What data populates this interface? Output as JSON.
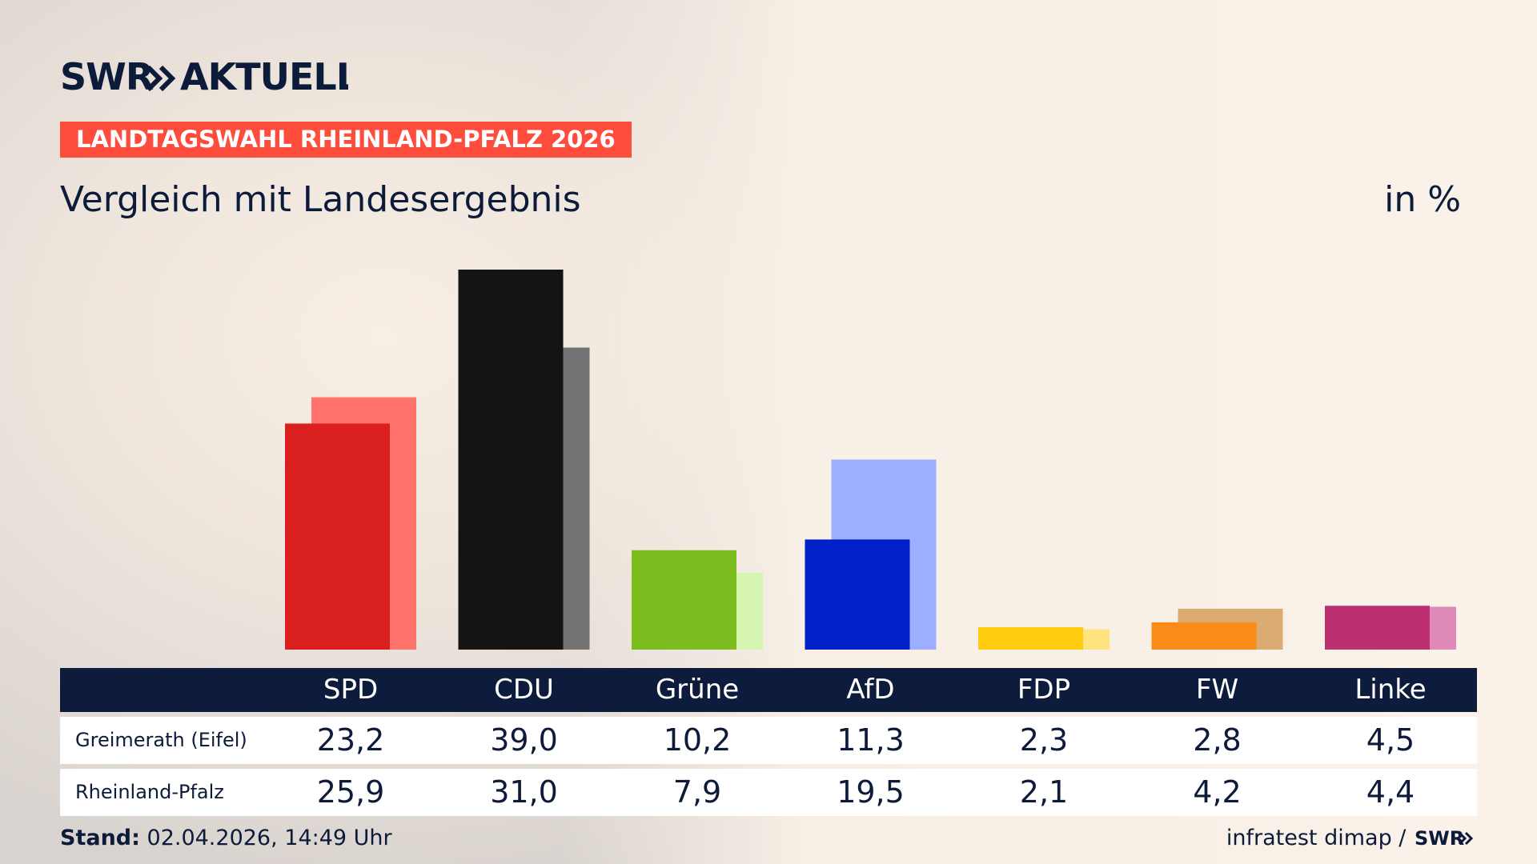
{
  "brand": {
    "logo_text": "SWR» AKTUELL",
    "footer_logo": "SWR»"
  },
  "tag": "LANDTAGSWAHL RHEINLAND-PFALZ 2026",
  "subtitle": "Vergleich mit Landesergebnis",
  "unit": "in %",
  "footer": {
    "stand_label": "Stand:",
    "stand_value": "02.04.2026, 14:49 Uhr",
    "source": "infratest dimap /"
  },
  "table": {
    "rows": [
      {
        "label": "Greimerath (Eifel)",
        "values": [
          "23,2",
          "39,0",
          "10,2",
          "11,3",
          "2,3",
          "2,8",
          "4,5"
        ]
      },
      {
        "label": "Rheinland-Pfalz",
        "values": [
          "25,9",
          "31,0",
          "7,9",
          "19,5",
          "2,1",
          "4,2",
          "4,4"
        ]
      }
    ]
  },
  "chart_data": {
    "type": "bar",
    "categories": [
      "SPD",
      "CDU",
      "Grüne",
      "AfD",
      "FDP",
      "FW",
      "Linke"
    ],
    "series": [
      {
        "name": "Greimerath (Eifel)",
        "values": [
          23.2,
          39.0,
          10.2,
          11.3,
          2.3,
          2.8,
          4.5
        ]
      },
      {
        "name": "Rheinland-Pfalz",
        "values": [
          25.9,
          31.0,
          7.9,
          19.5,
          2.1,
          4.2,
          4.4
        ]
      }
    ],
    "colors_primary": [
      "#d9201f",
      "#141414",
      "#7bbd1f",
      "#0021c8",
      "#ffcc0f",
      "#fb8b17",
      "#bc2f71"
    ],
    "colors_secondary": [
      "#ff736b",
      "#737373",
      "#d6f5b0",
      "#9eaeff",
      "#ffe37f",
      "#dcaa73",
      "#e08aba"
    ],
    "ylim": [
      0,
      40
    ],
    "legend": "none",
    "grid": false
  }
}
